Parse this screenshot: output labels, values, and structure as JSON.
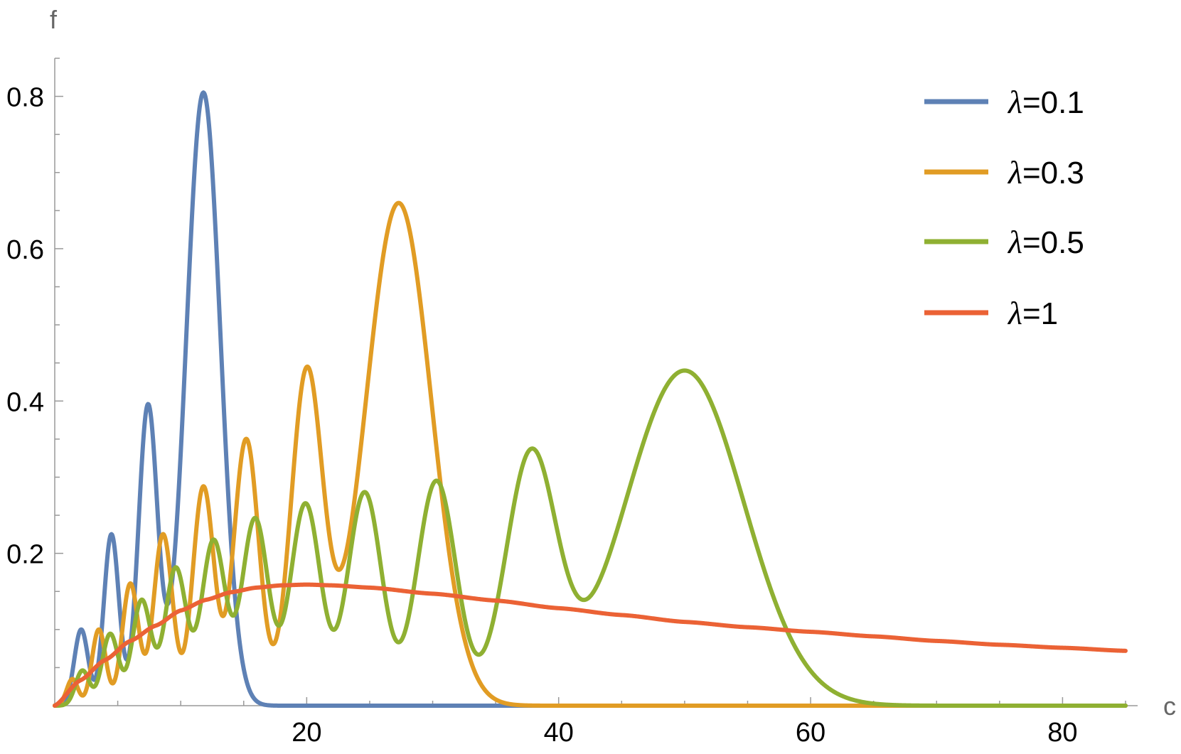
{
  "chart_data": {
    "type": "line",
    "title": "",
    "xlabel": "c",
    "ylabel": "f",
    "xlim": [
      0,
      85
    ],
    "ylim": [
      0,
      0.85
    ],
    "xticks": [
      20,
      40,
      60,
      80
    ],
    "yticks": [
      0.2,
      0.4,
      0.6,
      0.8
    ],
    "ytick_labels": [
      "0.2",
      "0.4",
      "0.6",
      "0.8"
    ],
    "legend_position": "top-right",
    "grid": false,
    "series": [
      {
        "name": "λ=0.1",
        "color": "#5e81b5",
        "peaks": [
          {
            "x": 2.1,
            "y": 0.1,
            "w": 0.55
          },
          {
            "x": 4.5,
            "y": 0.225,
            "w": 0.6
          },
          {
            "x": 7.4,
            "y": 0.392,
            "w": 0.75
          },
          {
            "x": 11.8,
            "y": 0.805,
            "w": 1.35
          }
        ]
      },
      {
        "name": "λ=0.3",
        "color": "#e19c24",
        "peaks": [
          {
            "x": 1.4,
            "y": 0.035,
            "w": 0.45
          },
          {
            "x": 3.5,
            "y": 0.1,
            "w": 0.55
          },
          {
            "x": 6.0,
            "y": 0.16,
            "w": 0.65
          },
          {
            "x": 8.6,
            "y": 0.225,
            "w": 0.75
          },
          {
            "x": 11.8,
            "y": 0.287,
            "w": 0.85
          },
          {
            "x": 15.2,
            "y": 0.35,
            "w": 1.0
          },
          {
            "x": 20.0,
            "y": 0.432,
            "w": 1.25
          },
          {
            "x": 27.3,
            "y": 0.66,
            "w": 2.6
          }
        ]
      },
      {
        "name": "λ=0.5",
        "color": "#8fb032",
        "peaks": [
          {
            "x": 2.2,
            "y": 0.046,
            "w": 0.55
          },
          {
            "x": 4.4,
            "y": 0.094,
            "w": 0.65
          },
          {
            "x": 6.9,
            "y": 0.138,
            "w": 0.75
          },
          {
            "x": 9.6,
            "y": 0.18,
            "w": 0.85
          },
          {
            "x": 12.6,
            "y": 0.216,
            "w": 0.95
          },
          {
            "x": 15.9,
            "y": 0.245,
            "w": 1.05
          },
          {
            "x": 19.9,
            "y": 0.265,
            "w": 1.2
          },
          {
            "x": 24.6,
            "y": 0.28,
            "w": 1.35
          },
          {
            "x": 30.3,
            "y": 0.295,
            "w": 1.55
          },
          {
            "x": 37.8,
            "y": 0.322,
            "w": 2.0
          },
          {
            "x": 50.0,
            "y": 0.44,
            "w": 4.7
          }
        ]
      },
      {
        "name": "λ=1",
        "color": "#eb6235",
        "curve": "smooth",
        "points": [
          [
            0,
            0
          ],
          [
            2,
            0.033
          ],
          [
            4,
            0.06
          ],
          [
            6,
            0.085
          ],
          [
            8,
            0.105
          ],
          [
            10,
            0.125
          ],
          [
            12,
            0.139
          ],
          [
            14,
            0.149
          ],
          [
            16,
            0.155
          ],
          [
            18,
            0.158
          ],
          [
            20,
            0.159
          ],
          [
            22,
            0.158
          ],
          [
            25,
            0.155
          ],
          [
            30,
            0.147
          ],
          [
            35,
            0.138
          ],
          [
            40,
            0.128
          ],
          [
            45,
            0.119
          ],
          [
            50,
            0.11
          ],
          [
            55,
            0.103
          ],
          [
            60,
            0.097
          ],
          [
            65,
            0.091
          ],
          [
            70,
            0.085
          ],
          [
            75,
            0.08
          ],
          [
            80,
            0.076
          ],
          [
            85,
            0.072
          ]
        ]
      }
    ]
  }
}
